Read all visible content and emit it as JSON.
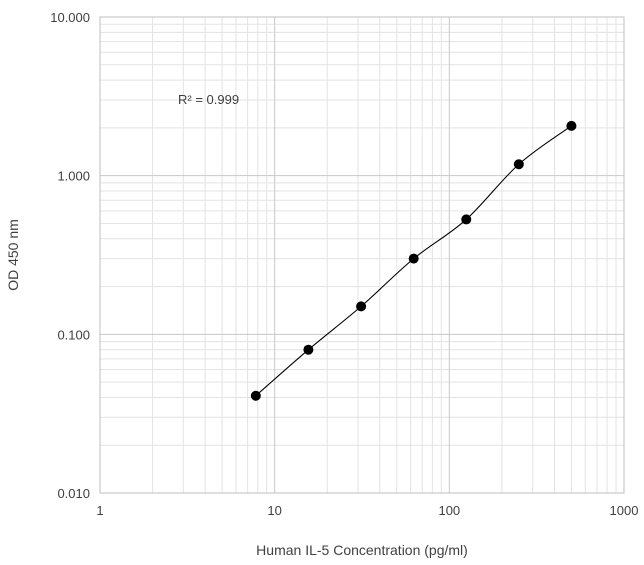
{
  "chart_data": {
    "type": "scatter",
    "xlabel": "Human IL-5 Concentration (pg/ml)",
    "ylabel": "OD 450 nm",
    "x_scale": "log",
    "y_scale": "log",
    "xlim": [
      1,
      1000
    ],
    "ylim": [
      0.01,
      10
    ],
    "x_ticks": [
      "1",
      "10",
      "100",
      "1000"
    ],
    "y_ticks": [
      "0.010",
      "0.100",
      "1.000",
      "10.000"
    ],
    "grid": true,
    "annotation": "R² = 0.999",
    "series": [
      {
        "x": [
          7.8,
          15.6,
          31.25,
          62.5,
          125,
          250,
          500
        ],
        "y": [
          0.041,
          0.08,
          0.15,
          0.3,
          0.53,
          1.18,
          2.06
        ]
      }
    ],
    "colors": {
      "points": "#000000",
      "line": "#000000",
      "grid": "#d9d9d9"
    }
  }
}
